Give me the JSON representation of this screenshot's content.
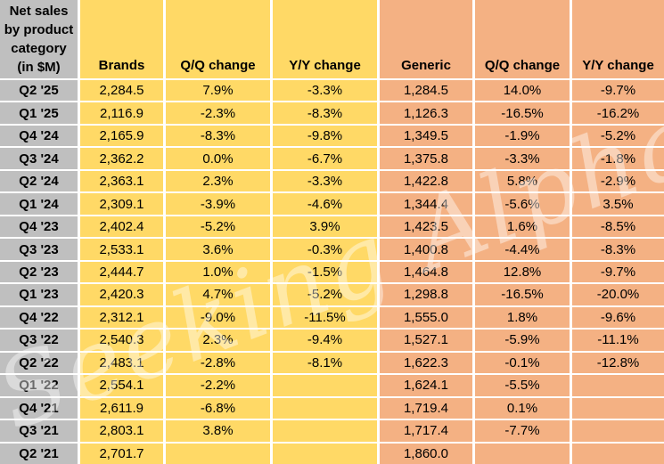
{
  "watermark": "Seeking Alpha",
  "corner_header": {
    "lines": [
      "Net sales",
      "by product",
      "category",
      "(in $M)"
    ]
  },
  "colors": {
    "quarter_column_bg": "#bfbfbf",
    "brands_bg": "#ffd966",
    "generic_bg": "#f4b183",
    "gridline": "#ffffff",
    "text": "#000000",
    "watermark": "rgba(255,255,255,0.42)"
  },
  "chart_data": {
    "type": "table",
    "title": "Net sales by product category (in $M)",
    "columns": [
      "Quarter",
      "Brands",
      "Q/Q change",
      "Y/Y change",
      "Generic",
      "Q/Q change",
      "Y/Y change"
    ],
    "rows": [
      [
        "Q2 '25",
        "2,284.5",
        "7.9%",
        "-3.3%",
        "1,284.5",
        "14.0%",
        "-9.7%"
      ],
      [
        "Q1 '25",
        "2,116.9",
        "-2.3%",
        "-8.3%",
        "1,126.3",
        "-16.5%",
        "-16.2%"
      ],
      [
        "Q4 '24",
        "2,165.9",
        "-8.3%",
        "-9.8%",
        "1,349.5",
        "-1.9%",
        "-5.2%"
      ],
      [
        "Q3 '24",
        "2,362.2",
        "0.0%",
        "-6.7%",
        "1,375.8",
        "-3.3%",
        "-1.8%"
      ],
      [
        "Q2 '24",
        "2,363.1",
        "2.3%",
        "-3.3%",
        "1,422.8",
        "5.8%",
        "-2.9%"
      ],
      [
        "Q1 '24",
        "2,309.1",
        "-3.9%",
        "-4.6%",
        "1,344.4",
        "-5.6%",
        "3.5%"
      ],
      [
        "Q4 '23",
        "2,402.4",
        "-5.2%",
        "3.9%",
        "1,423.5",
        "1.6%",
        "-8.5%"
      ],
      [
        "Q3 '23",
        "2,533.1",
        "3.6%",
        "-0.3%",
        "1,400.8",
        "-4.4%",
        "-8.3%"
      ],
      [
        "Q2 '23",
        "2,444.7",
        "1.0%",
        "-1.5%",
        "1,464.8",
        "12.8%",
        "-9.7%"
      ],
      [
        "Q1 '23",
        "2,420.3",
        "4.7%",
        "-5.2%",
        "1,298.8",
        "-16.5%",
        "-20.0%"
      ],
      [
        "Q4 '22",
        "2,312.1",
        "-9.0%",
        "-11.5%",
        "1,555.0",
        "1.8%",
        "-9.6%"
      ],
      [
        "Q3 '22",
        "2,540.3",
        "2.3%",
        "-9.4%",
        "1,527.1",
        "-5.9%",
        "-11.1%"
      ],
      [
        "Q2 '22",
        "2,483.1",
        "-2.8%",
        "-8.1%",
        "1,622.3",
        "-0.1%",
        "-12.8%"
      ],
      [
        "Q1 '22",
        "2,554.1",
        "-2.2%",
        "",
        "1,624.1",
        "-5.5%",
        ""
      ],
      [
        "Q4 '21",
        "2,611.9",
        "-6.8%",
        "",
        "1,719.4",
        "0.1%",
        ""
      ],
      [
        "Q3 '21",
        "2,803.1",
        "3.8%",
        "",
        "1,717.4",
        "-7.7%",
        ""
      ],
      [
        "Q2 '21",
        "2,701.7",
        "",
        "",
        "1,860.0",
        "",
        ""
      ]
    ]
  }
}
